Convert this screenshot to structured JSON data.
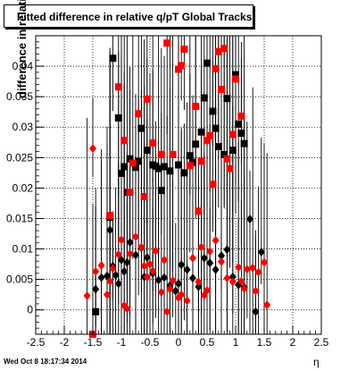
{
  "chart_data": {
    "type": "scatter",
    "title": "Fitted difference in relative q/pT  Global Tracks",
    "ylabel": "difference in relative q/pT",
    "xlabel": "η",
    "xlim": [
      -2.5,
      2.5
    ],
    "ylim": [
      -0.004,
      0.045
    ],
    "grid": true,
    "x_ticks": [
      "-2.5",
      "-2",
      "-1.5",
      "-1",
      "-0.5",
      "0",
      "0.5",
      "1",
      "1.5",
      "2",
      "2.5"
    ],
    "y_ticks": [
      "0",
      "0.005",
      "0.01",
      "0.015",
      "0.02",
      "0.025",
      "0.03",
      "0.035",
      "0.04"
    ],
    "series": [
      {
        "color": "#000000",
        "marker": "square",
        "points": [
          [
            -1.45,
            -0.0003
          ],
          [
            -1.15,
            0.0413
          ],
          [
            -1.05,
            0.0315
          ],
          [
            -0.95,
            0.0235
          ],
          [
            -0.9,
            0.0193
          ],
          [
            -0.85,
            0.0248
          ],
          [
            -0.75,
            0.0234
          ],
          [
            -0.65,
            0.0298
          ],
          [
            -0.55,
            0.0262
          ],
          [
            -0.45,
            0.0238
          ],
          [
            -0.4,
            0.0236
          ],
          [
            -0.3,
            0.0196
          ],
          [
            -0.25,
            0.0235
          ],
          [
            -0.15,
            0.0228
          ],
          [
            0,
            0.0238
          ],
          [
            0.1,
            0.0225
          ],
          [
            0.2,
            0.0253
          ],
          [
            0.3,
            0.0272
          ],
          [
            0.4,
            0.0292
          ],
          [
            0.45,
            0.0348
          ],
          [
            0.5,
            0.0405
          ],
          [
            0.6,
            0.0326
          ],
          [
            0.7,
            0.0268
          ],
          [
            0.85,
            0.0347
          ],
          [
            0.95,
            0.0262
          ],
          [
            1.0,
            0.0386
          ],
          [
            1.1,
            0.029
          ],
          [
            1.15,
            0.0273
          ],
          [
            -1.2,
            0.0152
          ],
          [
            -1.0,
            0.0224
          ],
          [
            -0.7,
            0.0244
          ],
          [
            0.65,
            0.0298
          ],
          [
            0.8,
            0.0255
          ],
          [
            1.05,
            0.0305
          ],
          [
            -0.35,
            0.0232
          ],
          [
            0.25,
            0.0242
          ]
        ]
      },
      {
        "color": "#000000",
        "marker": "diamond",
        "points": [
          [
            -1.45,
            0.0034
          ],
          [
            -1.35,
            0.0053
          ],
          [
            -1.25,
            0.0056
          ],
          [
            -1.2,
            0.0131
          ],
          [
            -1.15,
            0.0072
          ],
          [
            -1.1,
            0.0057
          ],
          [
            -1.05,
            0.0043
          ],
          [
            -1.0,
            0.0082
          ],
          [
            -0.95,
            0.0063
          ],
          [
            -0.9,
            0.0078
          ],
          [
            -0.85,
            0.0111
          ],
          [
            -0.75,
            0.009
          ],
          [
            -0.65,
            0.0102
          ],
          [
            -0.6,
            0.0054
          ],
          [
            -0.55,
            0.0086
          ],
          [
            -0.45,
            0.006
          ],
          [
            -0.35,
            0.0049
          ],
          [
            -0.25,
            0.0053
          ],
          [
            -0.15,
            0.004
          ],
          [
            -0.05,
            0.0031
          ],
          [
            0.0,
            0.0043
          ],
          [
            0.05,
            0.0074
          ],
          [
            0.15,
            0.0066
          ],
          [
            0.25,
            0.0052
          ],
          [
            0.35,
            0.0038
          ],
          [
            0.45,
            0.0085
          ],
          [
            0.55,
            0.0077
          ],
          [
            0.65,
            0.0066
          ],
          [
            0.75,
            0.0089
          ],
          [
            0.85,
            0.0099
          ],
          [
            0.95,
            0.0054
          ],
          [
            1.05,
            0.0041
          ],
          [
            1.15,
            0.0037
          ],
          [
            1.25,
            0.0149
          ],
          [
            1.35,
            -0.0003
          ],
          [
            1.45,
            0.0095
          ]
        ]
      },
      {
        "color": "#ff0000",
        "marker": "square",
        "points": [
          [
            -1.5,
            -0.004
          ],
          [
            -1.2,
            0.0155
          ],
          [
            -1.05,
            0.0366
          ],
          [
            -0.95,
            0.0278
          ],
          [
            -0.85,
            0.0193
          ],
          [
            -0.8,
            0.0241
          ],
          [
            -0.7,
            0.0322
          ],
          [
            -0.55,
            0.0346
          ],
          [
            -0.45,
            0.0274
          ],
          [
            -0.3,
            0.0255
          ],
          [
            -0.2,
            0.0438
          ],
          [
            -0.1,
            0.0255
          ],
          [
            0.0,
            0.0395
          ],
          [
            0.05,
            0.0401
          ],
          [
            0.1,
            0.0428
          ],
          [
            0.2,
            0.0237
          ],
          [
            0.3,
            0.0334
          ],
          [
            0.35,
            0.0162
          ],
          [
            0.5,
            0.0278
          ],
          [
            0.55,
            0.0286
          ],
          [
            0.65,
            0.0396
          ],
          [
            0.7,
            0.0424
          ],
          [
            0.75,
            0.0362
          ],
          [
            0.8,
            0.0429
          ],
          [
            0.85,
            0.0248
          ],
          [
            0.95,
            0.0288
          ],
          [
            1.0,
            0.0379
          ],
          [
            1.1,
            0.0318
          ],
          [
            0.4,
            0.0244
          ],
          [
            0.6,
            0.0206
          ],
          [
            -0.6,
            0.0186
          ],
          [
            0.9,
            0.0232
          ]
        ]
      },
      {
        "color": "#ff0000",
        "marker": "diamond",
        "points": [
          [
            -1.6,
            0.0023
          ],
          [
            -1.5,
            0.0265
          ],
          [
            -1.45,
            0.0063
          ],
          [
            -1.35,
            0.0073
          ],
          [
            -1.25,
            0.0025
          ],
          [
            -1.2,
            0.0047
          ],
          [
            -1.15,
            0.0068
          ],
          [
            -1.05,
            0.0091
          ],
          [
            -0.95,
            0.0007
          ],
          [
            -0.9,
            0.0002
          ],
          [
            -0.85,
            0.0092
          ],
          [
            -0.75,
            0.012
          ],
          [
            -0.65,
            0.0103
          ],
          [
            -0.6,
            0.0072
          ],
          [
            -0.55,
            0.0054
          ],
          [
            -0.5,
            0.0075
          ],
          [
            -0.45,
            0.0064
          ],
          [
            -0.4,
            0.0097
          ],
          [
            -0.3,
            0.0029
          ],
          [
            -0.25,
            0.0082
          ],
          [
            -0.2,
            -0.0003
          ],
          [
            -0.15,
            0.0034
          ],
          [
            -0.1,
            0.0048
          ],
          [
            0.0,
            0.002
          ],
          [
            0.05,
            0.0025
          ],
          [
            0.15,
            0.0015
          ],
          [
            0.25,
            0.0085
          ],
          [
            0.35,
            0.0046
          ],
          [
            0.45,
            0.0024
          ],
          [
            0.5,
            0.0032
          ],
          [
            0.55,
            0.0096
          ],
          [
            0.65,
            0.0114
          ],
          [
            0.75,
            0.0079
          ],
          [
            0.85,
            0.0052
          ],
          [
            0.95,
            0.0046
          ],
          [
            1.05,
            0.007
          ],
          [
            1.1,
            0.0047
          ],
          [
            1.15,
            0.0035
          ],
          [
            1.2,
            0.0067
          ],
          [
            1.3,
            0.0069
          ],
          [
            1.35,
            0.0031
          ],
          [
            1.4,
            0.0062
          ],
          [
            1.5,
            0.0078
          ],
          [
            1.55,
            0.0008
          ],
          [
            -1.0,
            0.0115
          ],
          [
            0.4,
            0.0103
          ]
        ]
      }
    ]
  },
  "footer": "Wed Oct  8 18:17:34 2014"
}
